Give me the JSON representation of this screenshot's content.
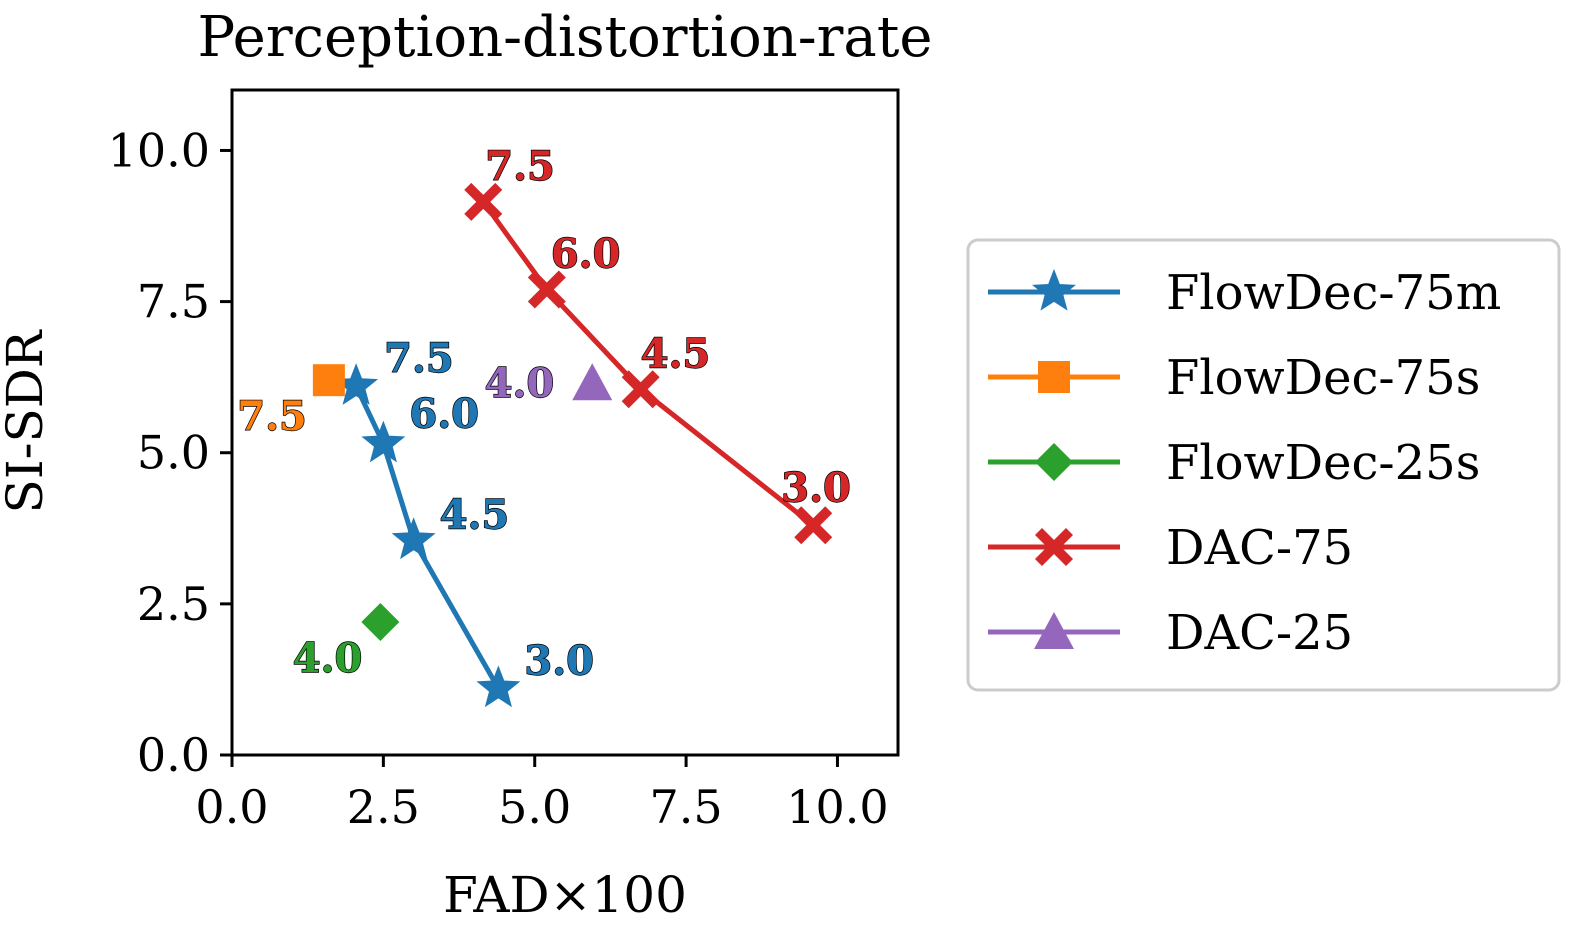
{
  "chart_data": {
    "type": "scatter",
    "title": "Perception-distortion-rate",
    "xlabel": "FAD×100",
    "ylabel": "SI-SDR",
    "xlim": [
      0.0,
      11.0
    ],
    "ylim": [
      0.0,
      11.0
    ],
    "xticks": [
      0.0,
      2.5,
      5.0,
      7.5,
      10.0
    ],
    "yticks": [
      0.0,
      2.5,
      5.0,
      7.5,
      10.0
    ],
    "xtick_labels": [
      "0.0",
      "2.5",
      "5.0",
      "7.5",
      "10.0"
    ],
    "ytick_labels": [
      "0.0",
      "2.5",
      "5.0",
      "7.5",
      "10.0"
    ],
    "grid": false,
    "legend_position": "right-outside",
    "series": [
      {
        "name": "FlowDec-75m",
        "color": "#1f77b4",
        "marker": "star",
        "connected": true,
        "points": [
          {
            "x": 2.05,
            "y": 6.1,
            "label": "7.5"
          },
          {
            "x": 2.5,
            "y": 5.15,
            "label": "6.0"
          },
          {
            "x": 3.0,
            "y": 3.55,
            "label": "4.5"
          },
          {
            "x": 4.4,
            "y": 1.1,
            "label": "3.0"
          }
        ]
      },
      {
        "name": "FlowDec-75s",
        "color": "#ff7f0e",
        "marker": "square",
        "connected": false,
        "points": [
          {
            "x": 1.6,
            "y": 6.2,
            "label": "7.5"
          }
        ]
      },
      {
        "name": "FlowDec-25s",
        "color": "#2ca02c",
        "marker": "diamond",
        "connected": false,
        "points": [
          {
            "x": 2.45,
            "y": 2.2,
            "label": "4.0"
          }
        ]
      },
      {
        "name": "DAC-75",
        "color": "#d62728",
        "marker": "x",
        "connected": true,
        "points": [
          {
            "x": 4.15,
            "y": 9.15,
            "label": "7.5"
          },
          {
            "x": 5.2,
            "y": 7.7,
            "label": "6.0"
          },
          {
            "x": 6.75,
            "y": 6.05,
            "label": "4.5"
          },
          {
            "x": 9.6,
            "y": 3.8,
            "label": "3.0"
          }
        ]
      },
      {
        "name": "DAC-25",
        "color": "#9467bd",
        "marker": "triangle",
        "connected": false,
        "points": [
          {
            "x": 5.95,
            "y": 6.15,
            "label": "4.0"
          }
        ]
      }
    ]
  }
}
